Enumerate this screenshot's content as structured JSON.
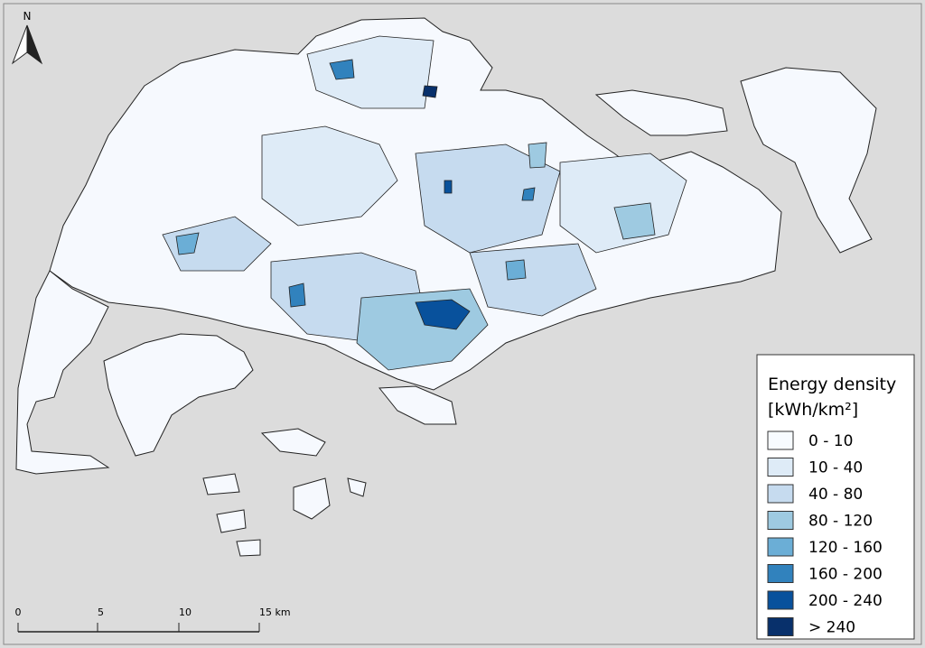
{
  "north_label": "N",
  "legend": {
    "title": "Energy density",
    "unit": "[kWh/km²]",
    "items": [
      {
        "label": "0 - 10",
        "color": "#f7fbff"
      },
      {
        "label": "10 - 40",
        "color": "#deebf7"
      },
      {
        "label": "40 - 80",
        "color": "#c6dbef"
      },
      {
        "label": "80 - 120",
        "color": "#9ecae1"
      },
      {
        "label": "120 - 160",
        "color": "#6baed6"
      },
      {
        "label": "160 - 200",
        "color": "#3182bd"
      },
      {
        "label": "200 - 240",
        "color": "#08519c"
      },
      {
        "label": "> 240",
        "color": "#08306b"
      }
    ]
  },
  "scale_bar": {
    "labels": [
      "0",
      "5",
      "10",
      "15 km"
    ]
  }
}
